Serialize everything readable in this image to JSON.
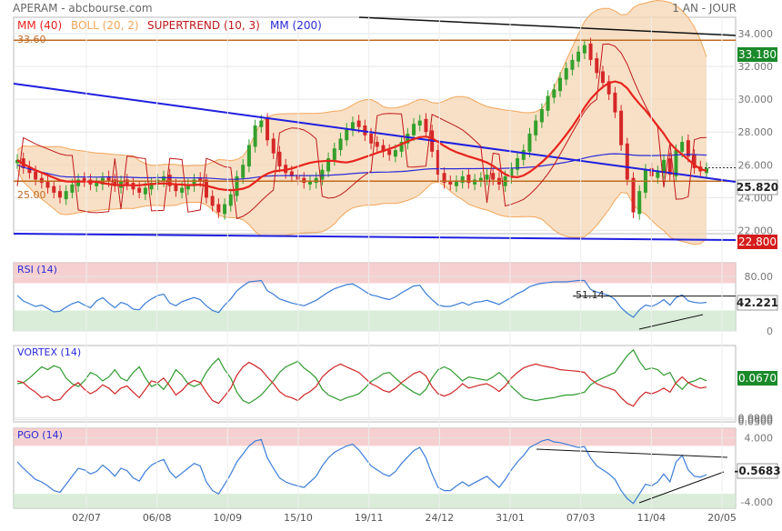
{
  "header": {
    "title": "APERAM - abcbourse.com",
    "period": "1 AN - JOUR"
  },
  "colors": {
    "price_up": "#33a02c",
    "price_down": "#d62728",
    "ma40": "#e8231d",
    "bollinger": "#f2a65a",
    "bollinger_fill": "#f6d5b3",
    "supertrend": "#c0191b",
    "ma200": "#2a2ad8",
    "trendline": "#1f1fe0",
    "hline": "#c06a20",
    "rsi_line": "#3b7dd8",
    "vortex_plus": "#2e9b2e",
    "vortex_minus": "#d02424",
    "pgo_line": "#3b7dd8",
    "overbought": "#f4c4c4",
    "oversold": "#cfe8cf",
    "badge_green": "#1a8a2a",
    "badge_red": "#d41c1c",
    "badge_white": "#ffffff"
  },
  "chart_data": [
    {
      "name": "price",
      "type": "candlestick",
      "legend": [
        {
          "label": "MM (40)",
          "color": "#e8231d"
        },
        {
          "label": "BOLL (20, 2)",
          "color": "#f2a65a"
        },
        {
          "label": "SUPERTREND (10, 3)",
          "color": "#c0191b"
        },
        {
          "label": "MM (200)",
          "color": "#2a2ad8"
        }
      ],
      "ylim": [
        21.8,
        35.0
      ],
      "yticks": [
        "34.000",
        "32.000",
        "30.000",
        "28.000",
        "26.000",
        "24.000",
        "22.000"
      ],
      "x_labels": [
        "02/07",
        "06/08",
        "10/09",
        "15/10",
        "19/11",
        "24/12",
        "31/01",
        "07/03",
        "11/04",
        "20/05"
      ],
      "closes": [
        26.3,
        25.8,
        25.5,
        25.1,
        24.9,
        24.6,
        24.3,
        24.0,
        24.4,
        24.8,
        25.1,
        25.0,
        24.8,
        24.9,
        25.2,
        25.0,
        24.7,
        25.0,
        24.8,
        24.5,
        24.3,
        24.6,
        24.9,
        25.1,
        25.3,
        24.7,
        24.4,
        24.6,
        24.8,
        25.1,
        25.0,
        24.0,
        23.5,
        23.1,
        23.6,
        24.2,
        25.3,
        26.0,
        27.2,
        28.4,
        28.7,
        27.5,
        26.7,
        25.9,
        25.5,
        25.3,
        25.1,
        24.9,
        25.0,
        25.2,
        25.7,
        26.4,
        27.0,
        27.6,
        28.2,
        28.6,
        28.3,
        27.8,
        27.3,
        27.1,
        26.8,
        26.6,
        26.9,
        27.4,
        27.9,
        28.5,
        28.7,
        28.0,
        26.8,
        25.4,
        24.9,
        24.8,
        25.0,
        25.3,
        24.9,
        25.1,
        25.2,
        25.4,
        25.1,
        24.8,
        25.3,
        25.8,
        26.4,
        26.9,
        27.9,
        28.7,
        29.4,
        30.2,
        30.6,
        31.3,
        31.9,
        32.4,
        32.9,
        33.3,
        32.4,
        31.6,
        31.0,
        30.3,
        29.2,
        27.2,
        25.1,
        23.1,
        24.4,
        25.7,
        25.3,
        25.6,
        26.3,
        25.4,
        26.9,
        27.4,
        26.5,
        25.8,
        25.6,
        25.8
      ]
    },
    {
      "name": "rsi",
      "type": "line",
      "title": "RSI (14)",
      "ylim": [
        0,
        100
      ],
      "yticks": [
        "80.00",
        "0"
      ],
      "overbought": 70,
      "oversold": 30,
      "annotation": "51.14",
      "last_value": "42.221",
      "values": [
        52,
        44,
        40,
        36,
        38,
        33,
        28,
        29,
        35,
        40,
        43,
        38,
        34,
        44,
        49,
        41,
        34,
        42,
        39,
        32,
        31,
        41,
        47,
        52,
        54,
        41,
        37,
        43,
        46,
        49,
        46,
        37,
        30,
        27,
        38,
        47,
        59,
        66,
        72,
        73,
        74,
        59,
        54,
        47,
        44,
        41,
        39,
        37,
        41,
        45,
        51,
        57,
        62,
        65,
        68,
        69,
        64,
        58,
        53,
        51,
        48,
        46,
        50,
        56,
        61,
        66,
        67,
        55,
        46,
        38,
        36,
        36,
        39,
        42,
        38,
        42,
        43,
        45,
        42,
        39,
        44,
        49,
        55,
        59,
        65,
        68,
        70,
        71,
        72,
        72,
        72,
        73,
        74,
        74,
        61,
        57,
        55,
        52,
        46,
        34,
        26,
        20,
        31,
        38,
        36,
        40,
        46,
        38,
        49,
        53,
        44,
        42,
        41,
        42
      ]
    },
    {
      "name": "vortex",
      "type": "line",
      "title": "VORTEX (14)",
      "ylim": [
        0.02,
        1.38
      ],
      "yticks": [
        "0.0900",
        "0.0600",
        "0.0300"
      ],
      "last_value": "0.0670",
      "series": [
        {
          "name": "VI+",
          "values": [
            0.7,
            0.72,
            0.8,
            0.9,
            1.0,
            0.95,
            1.02,
            0.98,
            0.8,
            0.7,
            0.65,
            0.75,
            0.9,
            0.85,
            0.75,
            0.82,
            0.95,
            0.8,
            0.75,
            0.9,
            1.0,
            0.8,
            0.65,
            0.7,
            0.6,
            0.75,
            0.95,
            0.85,
            0.7,
            0.65,
            0.7,
            0.9,
            1.05,
            1.15,
            0.95,
            0.8,
            0.55,
            0.4,
            0.35,
            0.42,
            0.5,
            0.62,
            0.75,
            0.9,
            1.0,
            1.05,
            1.1,
            0.98,
            0.9,
            0.8,
            0.6,
            0.5,
            0.45,
            0.4,
            0.45,
            0.48,
            0.52,
            0.62,
            0.74,
            0.8,
            0.88,
            0.9,
            0.8,
            0.7,
            0.62,
            0.55,
            0.5,
            0.6,
            0.8,
            0.95,
            1.0,
            0.95,
            0.85,
            0.75,
            0.82,
            0.8,
            0.78,
            0.76,
            0.82,
            0.9,
            0.8,
            0.65,
            0.55,
            0.45,
            0.42,
            0.4,
            0.42,
            0.44,
            0.45,
            0.48,
            0.5,
            0.5,
            0.52,
            0.55,
            0.68,
            0.75,
            0.8,
            0.85,
            0.9,
            1.05,
            1.2,
            1.3,
            1.1,
            0.95,
            0.98,
            0.95,
            0.85,
            0.9,
            0.7,
            0.6,
            0.72,
            0.75,
            0.8,
            0.75
          ]
        },
        {
          "name": "VI-",
          "values": [
            0.75,
            0.72,
            0.62,
            0.55,
            0.45,
            0.48,
            0.4,
            0.42,
            0.55,
            0.65,
            0.72,
            0.6,
            0.52,
            0.58,
            0.68,
            0.62,
            0.52,
            0.62,
            0.66,
            0.55,
            0.45,
            0.6,
            0.75,
            0.72,
            0.8,
            0.66,
            0.5,
            0.58,
            0.7,
            0.76,
            0.72,
            0.55,
            0.4,
            0.35,
            0.48,
            0.62,
            0.85,
            1.0,
            1.08,
            1.02,
            0.95,
            0.82,
            0.7,
            0.56,
            0.48,
            0.45,
            0.4,
            0.5,
            0.56,
            0.65,
            0.82,
            0.92,
            1.0,
            1.05,
            1.0,
            0.95,
            0.9,
            0.8,
            0.7,
            0.65,
            0.58,
            0.55,
            0.62,
            0.72,
            0.8,
            0.88,
            0.92,
            0.84,
            0.65,
            0.52,
            0.48,
            0.52,
            0.6,
            0.7,
            0.62,
            0.65,
            0.68,
            0.7,
            0.64,
            0.56,
            0.66,
            0.8,
            0.9,
            0.98,
            1.02,
            1.05,
            1.02,
            1.0,
            0.98,
            0.95,
            0.94,
            0.93,
            0.92,
            0.9,
            0.78,
            0.7,
            0.65,
            0.62,
            0.58,
            0.45,
            0.35,
            0.3,
            0.45,
            0.55,
            0.52,
            0.56,
            0.62,
            0.55,
            0.72,
            0.82,
            0.72,
            0.66,
            0.62,
            0.64
          ]
        }
      ]
    },
    {
      "name": "pgo",
      "type": "line",
      "title": "PGO (14)",
      "ylim": [
        -4.8,
        5.2
      ],
      "yticks": [
        "4.000",
        "-4.000"
      ],
      "overbought": 3.0,
      "oversold": -3.0,
      "last_value": "-0.5683",
      "values": [
        1.0,
        0.2,
        -0.5,
        -1.2,
        -1.5,
        -2.0,
        -2.6,
        -2.8,
        -1.8,
        -0.8,
        0.2,
        0.0,
        -0.5,
        -0.2,
        0.6,
        0.0,
        -0.8,
        0.2,
        -0.1,
        -1.0,
        -1.4,
        -0.2,
        0.6,
        1.0,
        1.3,
        -0.2,
        -1.0,
        -0.4,
        0.2,
        0.8,
        0.5,
        -1.5,
        -2.6,
        -3.0,
        -1.8,
        -0.5,
        1.0,
        2.0,
        3.0,
        3.6,
        3.8,
        1.5,
        0.2,
        -1.0,
        -1.5,
        -1.8,
        -2.0,
        -2.2,
        -1.5,
        -0.8,
        0.5,
        1.5,
        2.2,
        2.6,
        3.0,
        3.2,
        2.5,
        1.5,
        0.5,
        0.0,
        -0.5,
        -0.8,
        -0.2,
        0.8,
        1.6,
        2.4,
        2.8,
        1.5,
        -0.5,
        -2.2,
        -2.6,
        -2.6,
        -2.0,
        -1.5,
        -2.0,
        -1.6,
        -1.2,
        -0.8,
        -1.5,
        -2.2,
        -1.2,
        0.0,
        1.0,
        1.8,
        2.8,
        3.2,
        3.6,
        3.8,
        3.5,
        3.4,
        3.2,
        3.0,
        2.8,
        2.9,
        1.5,
        0.5,
        0.0,
        -0.5,
        -1.2,
        -2.6,
        -3.6,
        -4.2,
        -3.0,
        -1.8,
        -2.0,
        -1.5,
        -0.5,
        -1.5,
        1.0,
        1.8,
        0.0,
        -0.8,
        -0.9,
        -0.6
      ]
    }
  ],
  "price_lines": {
    "supertrend_top": "33.60",
    "support_label": "25.00"
  },
  "badges": {
    "resistance": "33.180",
    "last_price": "25.820",
    "support": "22.800"
  }
}
